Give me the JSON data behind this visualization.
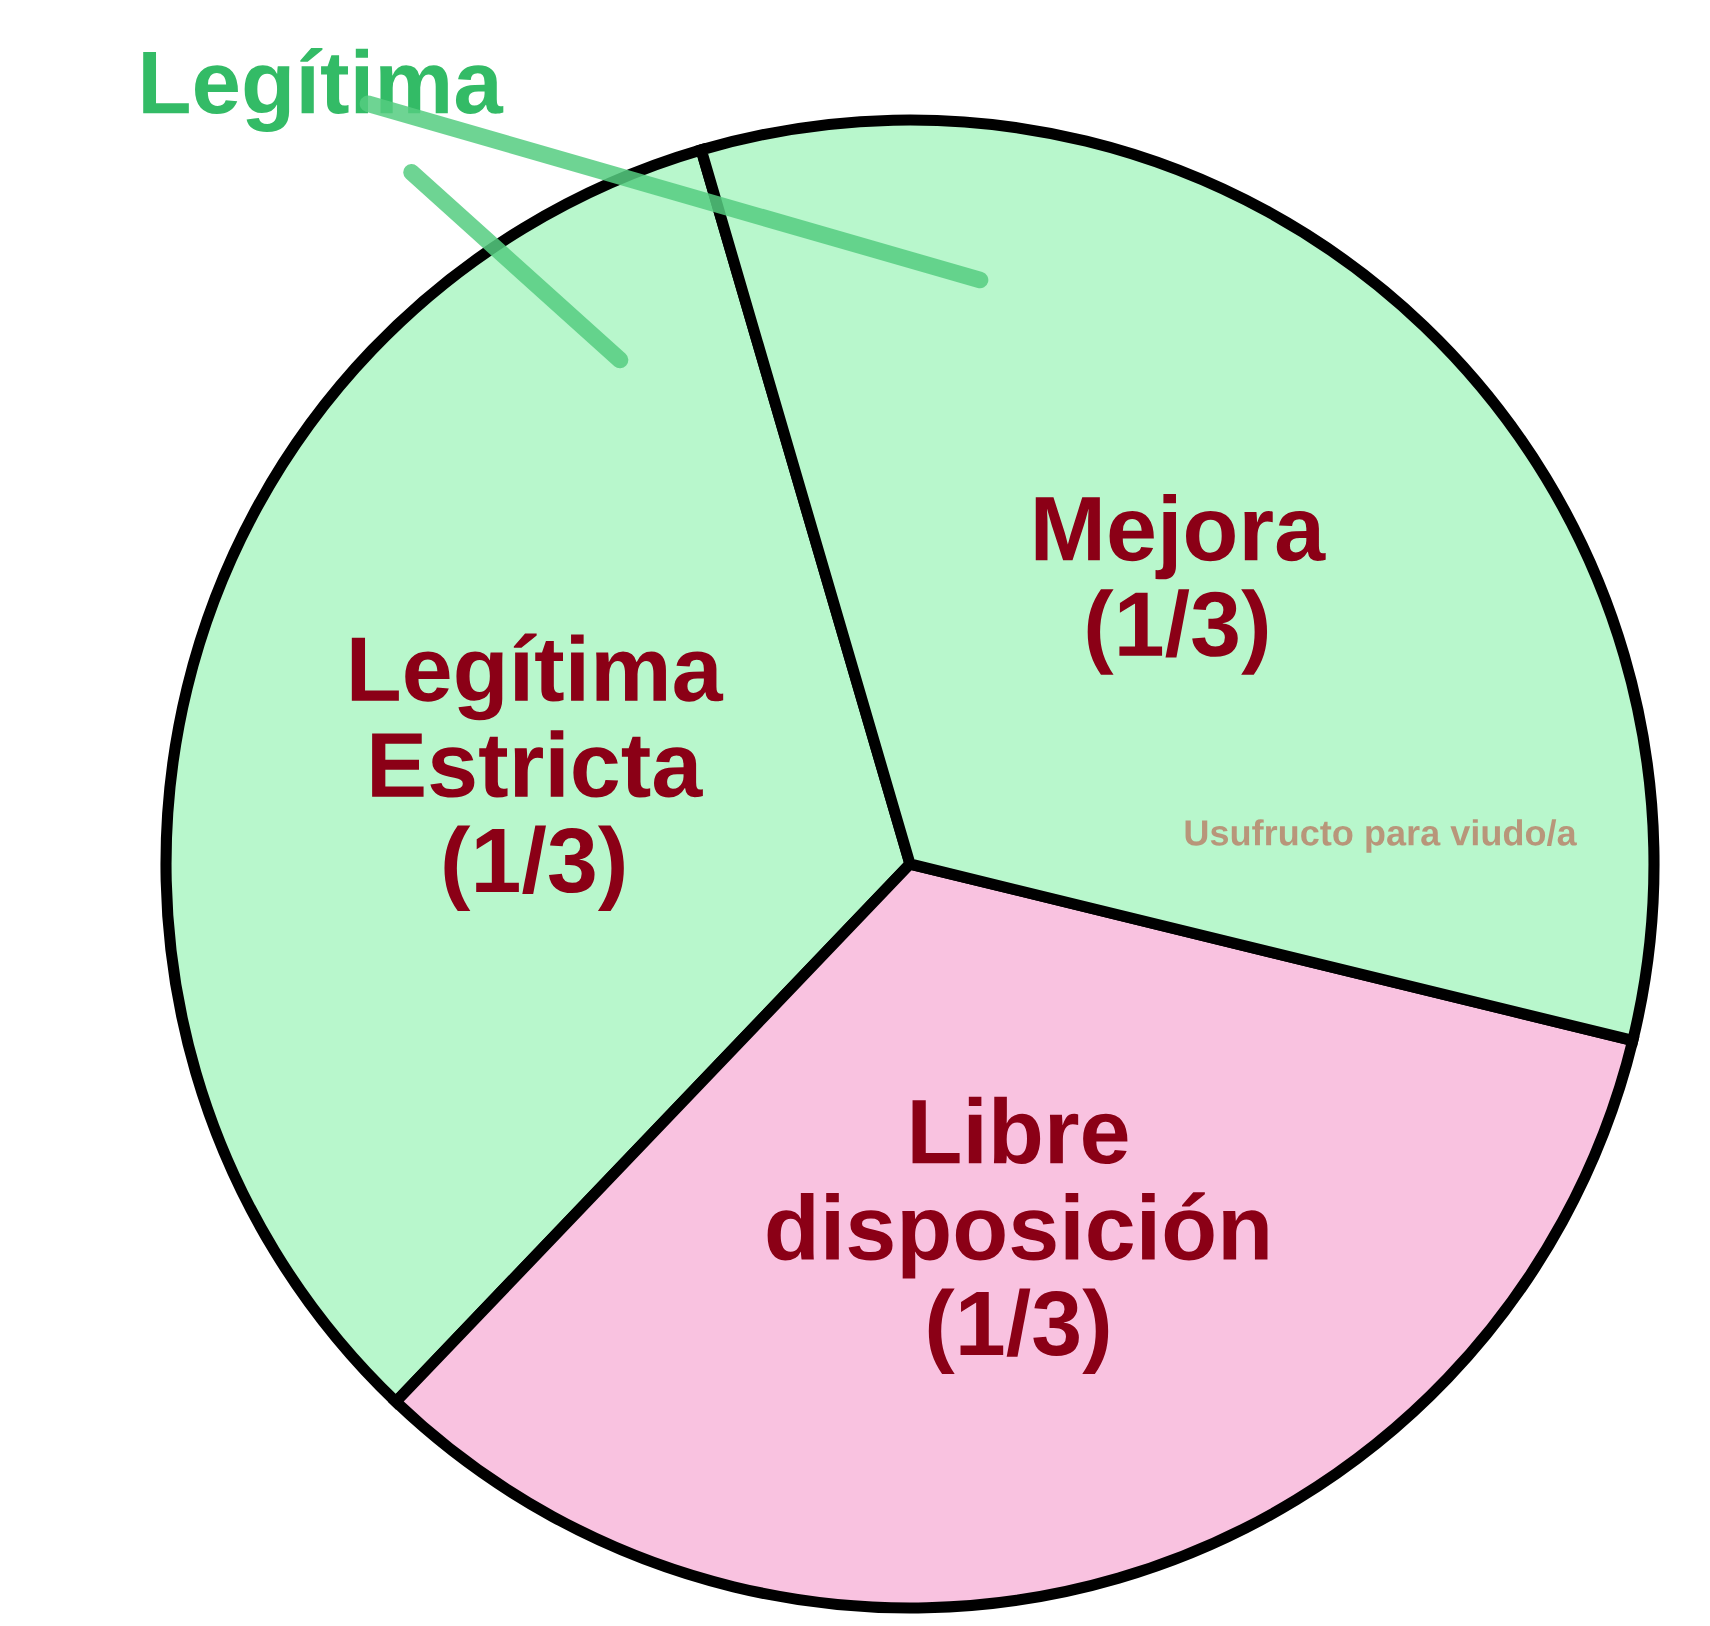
{
  "chart_data": {
    "type": "pie",
    "categories": [
      "Legítima Estricta",
      "Libre disposición",
      "Mejora"
    ],
    "values": [
      33.33,
      33.33,
      33.34
    ],
    "value_labels": [
      "(1/3)",
      "(1/3)",
      "(1/3)"
    ],
    "colors": [
      "#b8f7cc",
      "#f9c2e0",
      "#b8f7cc"
    ],
    "annotations": [
      "Legítima",
      "Usufructo para viudo/a"
    ],
    "legend": false
  }
}
